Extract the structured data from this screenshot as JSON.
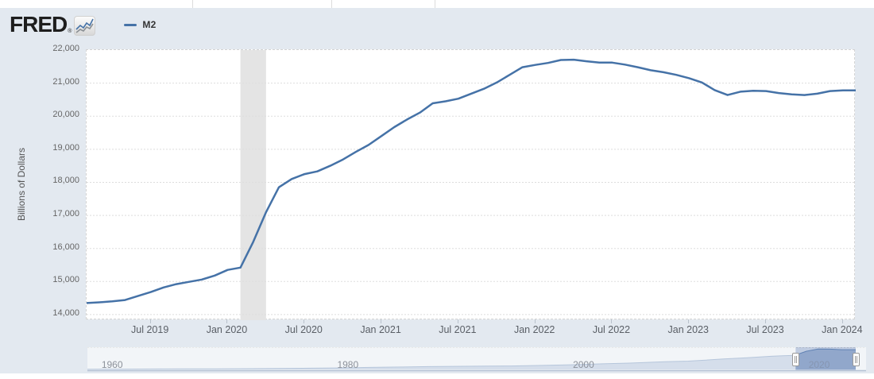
{
  "header": {
    "logo_text": "FRED",
    "registered_mark": "®",
    "logo_icon": "fred-line-chart-icon",
    "legend": {
      "series_label": "M2",
      "series_color": "#4572a7"
    }
  },
  "colors": {
    "page_background": "#e3e9f0",
    "plot_background": "#ffffff",
    "series_line": "#4572a7",
    "gridline": "#dddddd",
    "recession_band": "#e4e4e4",
    "axis_text": "#666666",
    "nav_area_fill": "rgba(120,148,190,0.6)",
    "nav_area_line": "#5e82b0",
    "nav_selection_tint": "rgba(100,130,185,0.28)",
    "nav_outside_mask": "rgba(255,255,255,0.55)",
    "nav_axis_line": "#b4c1d4"
  },
  "chart_data": {
    "type": "line",
    "title": "",
    "series_name": "M2",
    "ylabel": "Billions of Dollars",
    "frequency": "monthly",
    "x_start": "2019-02",
    "x_end": "2024-02",
    "x": [
      "2019-02",
      "2019-03",
      "2019-04",
      "2019-05",
      "2019-06",
      "2019-07",
      "2019-08",
      "2019-09",
      "2019-10",
      "2019-11",
      "2019-12",
      "2020-01",
      "2020-02",
      "2020-03",
      "2020-04",
      "2020-05",
      "2020-06",
      "2020-07",
      "2020-08",
      "2020-09",
      "2020-10",
      "2020-11",
      "2020-12",
      "2021-01",
      "2021-02",
      "2021-03",
      "2021-04",
      "2021-05",
      "2021-06",
      "2021-07",
      "2021-08",
      "2021-09",
      "2021-10",
      "2021-11",
      "2021-12",
      "2022-01",
      "2022-02",
      "2022-03",
      "2022-04",
      "2022-05",
      "2022-06",
      "2022-07",
      "2022-08",
      "2022-09",
      "2022-10",
      "2022-11",
      "2022-12",
      "2023-01",
      "2023-02",
      "2023-03",
      "2023-04",
      "2023-05",
      "2023-06",
      "2023-07",
      "2023-08",
      "2023-09",
      "2023-10",
      "2023-11",
      "2023-12",
      "2024-01",
      "2024-02"
    ],
    "values": [
      14350,
      14370,
      14400,
      14440,
      14560,
      14680,
      14820,
      14920,
      14990,
      15060,
      15180,
      15350,
      15420,
      16200,
      17100,
      17850,
      18100,
      18250,
      18330,
      18500,
      18690,
      18920,
      19130,
      19400,
      19670,
      19900,
      20110,
      20390,
      20450,
      20530,
      20680,
      20830,
      21020,
      21250,
      21480,
      21550,
      21610,
      21700,
      21710,
      21660,
      21620,
      21620,
      21560,
      21480,
      21390,
      21330,
      21250,
      21150,
      21020,
      20790,
      20640,
      20740,
      20770,
      20760,
      20700,
      20660,
      20640,
      20680,
      20760,
      20780,
      20780
    ],
    "ylim": [
      13830,
      22000
    ],
    "yticks": [
      {
        "label": "14,000",
        "value": 14000
      },
      {
        "label": "15,000",
        "value": 15000
      },
      {
        "label": "16,000",
        "value": 16000
      },
      {
        "label": "17,000",
        "value": 17000
      },
      {
        "label": "18,000",
        "value": 18000
      },
      {
        "label": "19,000",
        "value": 19000
      },
      {
        "label": "20,000",
        "value": 20000
      },
      {
        "label": "21,000",
        "value": 21000
      },
      {
        "label": "22,000",
        "value": 22000
      }
    ],
    "xticks": [
      {
        "label": "Jul 2019",
        "index": 5
      },
      {
        "label": "Jan 2020",
        "index": 11
      },
      {
        "label": "Jul 2020",
        "index": 17
      },
      {
        "label": "Jan 2021",
        "index": 23
      },
      {
        "label": "Jul 2021",
        "index": 29
      },
      {
        "label": "Jan 2022",
        "index": 35
      },
      {
        "label": "Jul 2022",
        "index": 41
      },
      {
        "label": "Jan 2023",
        "index": 47
      },
      {
        "label": "Jul 2023",
        "index": 53
      },
      {
        "label": "Jan 2024",
        "index": 59
      }
    ],
    "grid": "horizontal-only",
    "legend_position": "top-left",
    "recession_band": {
      "start": "2020-02",
      "end": "2020-04",
      "start_index": 12,
      "end_index": 14
    }
  },
  "navigator": {
    "type": "area",
    "series_name": "M2 full history",
    "x_range": [
      1959,
      2024.2
    ],
    "value_max": 21700,
    "ticks": [
      {
        "label": "1960",
        "year": 1960
      },
      {
        "label": "1980",
        "year": 1980
      },
      {
        "label": "2000",
        "year": 2000
      },
      {
        "label": "2020",
        "year": 2020,
        "masked": true
      }
    ],
    "series": {
      "x": [
        1959,
        1962,
        1965,
        1968,
        1970,
        1973,
        1975,
        1978,
        1980,
        1983,
        1985,
        1988,
        1990,
        1993,
        1995,
        1998,
        2000,
        2003,
        2005,
        2008,
        2010,
        2013,
        2015,
        2017,
        2018,
        2019,
        2020,
        2021,
        2022,
        2023,
        2024.2
      ],
      "values": [
        290,
        350,
        460,
        550,
        630,
        860,
        1020,
        1370,
        1600,
        2130,
        2500,
        2990,
        3280,
        3480,
        3640,
        4400,
        4920,
        6070,
        6680,
        8190,
        8800,
        10990,
        12340,
        13840,
        14360,
        14800,
        19100,
        21500,
        21400,
        20800,
        20800
      ]
    },
    "selection": {
      "start_year": 2019.1,
      "end_year": 2024.2,
      "start_label": "2019-02",
      "end_label": "2024-02"
    }
  }
}
